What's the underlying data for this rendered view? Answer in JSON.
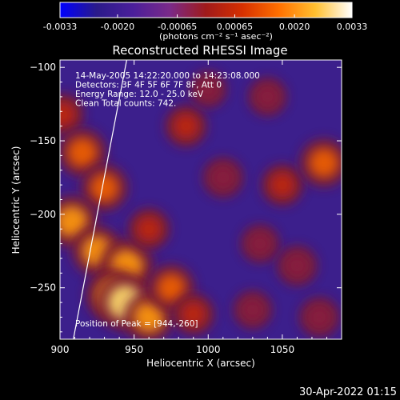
{
  "chart_data": {
    "type": "heatmap",
    "title": "Reconstructed RHESSI Image",
    "xlabel": "Heliocentric X (arcsec)",
    "ylabel": "Heliocentric Y (arcsec)",
    "xlim": [
      900,
      1090
    ],
    "ylim": [
      -285,
      -95
    ],
    "x_ticks": [
      900,
      950,
      1000,
      1050
    ],
    "y_ticks": [
      -100,
      -150,
      -200,
      -250
    ],
    "colorbar": {
      "min": -0.0033,
      "max": 0.0033,
      "ticks": [
        "-0.0033",
        "-0.0020",
        "-0.00065",
        "0.00065",
        "0.0020",
        "0.0033"
      ],
      "unit_label": "(photons cm⁻² s⁻¹ asec⁻²)",
      "colors": [
        "#0000ff",
        "#2a1a8a",
        "#4b1f9a",
        "#7a2a8a",
        "#a01a1a",
        "#d63000",
        "#ff7000",
        "#ffc030",
        "#ffffff"
      ]
    },
    "annotations": [
      "14-May-2005 14:22:20.000 to 14:23:08.000",
      "Detectors: 3F 4F 5F 6F 7F 8F, Att 0",
      "Energy Range: 12.0 - 25.0 keV",
      "Clean     Total counts: 742.",
      "Position of Peak = [944,-260]"
    ],
    "limb_line": {
      "x": [
        909,
        945
      ],
      "y": [
        -285,
        -95
      ]
    },
    "bright_regions": [
      {
        "x": 902,
        "y": -132,
        "level": 0.55
      },
      {
        "x": 915,
        "y": -158,
        "level": 0.75
      },
      {
        "x": 930,
        "y": -182,
        "level": 0.7
      },
      {
        "x": 908,
        "y": -205,
        "level": 0.85
      },
      {
        "x": 925,
        "y": -225,
        "level": 0.8
      },
      {
        "x": 945,
        "y": -235,
        "level": 0.9
      },
      {
        "x": 935,
        "y": -255,
        "level": 0.85
      },
      {
        "x": 944,
        "y": -260,
        "level": 1.0
      },
      {
        "x": 960,
        "y": -270,
        "level": 0.8
      },
      {
        "x": 975,
        "y": -250,
        "level": 0.7
      },
      {
        "x": 990,
        "y": -268,
        "level": 0.55
      },
      {
        "x": 960,
        "y": -210,
        "level": 0.55
      },
      {
        "x": 985,
        "y": -140,
        "level": 0.55
      },
      {
        "x": 1010,
        "y": -175,
        "level": 0.5
      },
      {
        "x": 1050,
        "y": -180,
        "level": 0.55
      },
      {
        "x": 1078,
        "y": -165,
        "level": 0.75
      },
      {
        "x": 1035,
        "y": -220,
        "level": 0.45
      },
      {
        "x": 1060,
        "y": -235,
        "level": 0.5
      },
      {
        "x": 1030,
        "y": -265,
        "level": 0.45
      },
      {
        "x": 1075,
        "y": -270,
        "level": 0.5
      },
      {
        "x": 1000,
        "y": -115,
        "level": 0.4
      },
      {
        "x": 1040,
        "y": -120,
        "level": 0.45
      }
    ]
  },
  "footer": {
    "timestamp": "30-Apr-2022 01:15"
  }
}
